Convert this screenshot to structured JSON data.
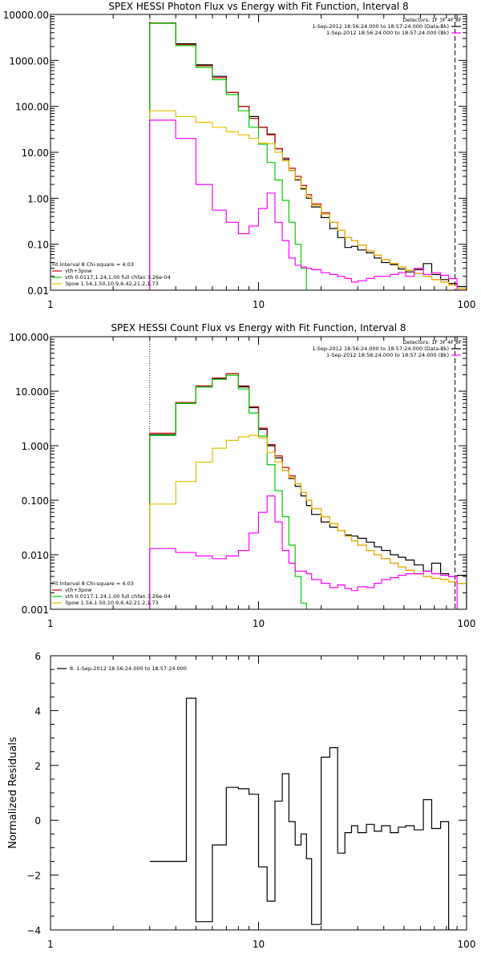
{
  "chart_data": [
    {
      "type": "line",
      "title": "SPEX HESSI Photon Flux vs Energy with Fit Function, Interval 8",
      "x_scale": "log",
      "y_scale": "log",
      "xlim": [
        1,
        100
      ],
      "ylim": [
        0.01,
        10000
      ],
      "x_ticks": [
        "1",
        "10",
        "100"
      ],
      "y_ticks": [
        "0.01",
        "0.10",
        "1.00",
        "10.00",
        "100.00",
        "1000.00",
        "10000.00"
      ],
      "legend_top": {
        "detectors": "Detectors: 1F 3F 4F 8F",
        "entries": [
          {
            "text": "1-Sep-2012 18:56:24.000 to 18:57:24.000 (Data-Bk)",
            "color": "#000000"
          },
          {
            "text": "1-Sep-2012 18:56:24.000 to 18:57:24.000 (Bk)",
            "color": "#ff00ff"
          }
        ]
      },
      "legend_bottom": {
        "fit_label": "Fit Interval 8   Chi-square = 4.03",
        "entries": [
          {
            "text": "vth+3pow",
            "color": "#cc0000"
          },
          {
            "text": "vth 0.0117,1.24,1.00  full chfan 3.26e-04",
            "color": "#00cc00"
          },
          {
            "text": "3pow 1.54,1.50,10.9,6.42,21.2,1.73",
            "color": "#e6c000"
          }
        ]
      },
      "fit_range": [
        3.0,
        88.0
      ],
      "bin_edges": [
        3.0,
        4.0,
        5.0,
        6.0,
        7.0,
        8.0,
        9.0,
        10.0,
        11.0,
        12.0,
        13.0,
        14.0,
        15.0,
        16.0,
        17.0,
        18.0,
        20.0,
        22.0,
        24.0,
        26.0,
        28.0,
        30.0,
        33.0,
        36.0,
        39.0,
        43.0,
        47.0,
        51.0,
        56.0,
        62.0,
        68.0,
        75.0,
        82.0,
        90.0,
        100.0
      ],
      "series": [
        {
          "name": "Data-Bk",
          "color": "#000000",
          "values": [
            6500,
            2300,
            800,
            450,
            200,
            100,
            60,
            35,
            25,
            12,
            7.0,
            4.0,
            2.5,
            1.6,
            1.0,
            0.65,
            0.38,
            0.22,
            0.14,
            0.085,
            0.09,
            0.075,
            0.065,
            0.05,
            0.04,
            0.036,
            0.029,
            0.025,
            0.028,
            0.038,
            0.022,
            0.017,
            0.014,
            0.012
          ]
        },
        {
          "name": "vth+3pow",
          "color": "#cc0000",
          "values": [
            6500,
            2200,
            760,
            420,
            200,
            100,
            55,
            35,
            24,
            12,
            7.5,
            4.5,
            3.0,
            1.9,
            1.2,
            0.75,
            0.48,
            0.3,
            0.2,
            0.14,
            0.12,
            0.095,
            0.072,
            0.058,
            0.046,
            0.038,
            0.032,
            0.027,
            0.023,
            0.02,
            0.017,
            0.015,
            0.013,
            0.011
          ]
        },
        {
          "name": "vth",
          "color": "#00cc00",
          "values": [
            6400,
            2100,
            700,
            380,
            180,
            80,
            35,
            15,
            6.0,
            2.5,
            0.9,
            0.3,
            0.1,
            0.03,
            0.009
          ]
        },
        {
          "name": "3pow",
          "color": "#e6c000",
          "values": [
            80,
            60,
            45,
            35,
            28,
            24,
            20,
            16,
            15.5,
            10,
            6.5,
            4.0,
            2.6,
            1.7,
            1.1,
            0.7,
            0.45,
            0.3,
            0.2,
            0.14,
            0.12,
            0.095,
            0.072,
            0.058,
            0.046,
            0.038,
            0.032,
            0.027,
            0.023,
            0.02,
            0.017,
            0.015,
            0.013,
            0.011
          ]
        },
        {
          "name": "Bk",
          "color": "#ff00ff",
          "values": [
            50,
            20,
            2.0,
            0.55,
            0.3,
            0.17,
            0.25,
            0.6,
            1.3,
            0.3,
            0.12,
            0.05,
            0.035,
            0.032,
            0.03,
            0.028,
            0.024,
            0.022,
            0.02,
            0.018,
            0.015,
            0.016,
            0.018,
            0.02,
            0.02,
            0.022,
            0.024,
            0.02,
            0.03,
            0.022,
            0.024,
            0.021,
            0.018,
            0.01
          ]
        }
      ]
    },
    {
      "type": "line",
      "title": "SPEX HESSI Count Flux vs Energy with Fit Function, Interval 8",
      "x_scale": "log",
      "y_scale": "log",
      "xlim": [
        1,
        100
      ],
      "ylim": [
        0.001,
        100
      ],
      "x_ticks": [
        "1",
        "10",
        "100"
      ],
      "y_ticks": [
        "0.001",
        "0.010",
        "0.100",
        "1.000",
        "10.000",
        "100.000"
      ],
      "legend_top": {
        "detectors": "Detectors: 1F 3F 4F 8F",
        "entries": [
          {
            "text": "1-Sep-2012 18:56:24.000 to 18:57:24.000 (Data-Bk)",
            "color": "#000000"
          },
          {
            "text": "1-Sep-2012 18:56:24.000 to 18:57:24.000 (Bk)",
            "color": "#ff00ff"
          }
        ]
      },
      "legend_bottom": {
        "fit_label": "Fit Interval 8   Chi-square = 4.03",
        "entries": [
          {
            "text": "vth+3pow",
            "color": "#cc0000"
          },
          {
            "text": "vth 0.0117,1.24,1.00  full chfan 3.26e-04",
            "color": "#00cc00"
          },
          {
            "text": "3pow 1.54,1.50,10.9,6.42,21.2,1.73",
            "color": "#e6c000"
          }
        ]
      },
      "fit_range": [
        3.0,
        88.0
      ],
      "bin_edges": [
        3.0,
        4.0,
        5.0,
        6.0,
        7.0,
        8.0,
        9.0,
        10.0,
        11.0,
        12.0,
        13.0,
        14.0,
        15.0,
        16.0,
        17.0,
        18.0,
        20.0,
        22.0,
        24.0,
        26.0,
        28.0,
        30.0,
        33.0,
        36.0,
        39.0,
        43.0,
        47.0,
        51.0,
        56.0,
        62.0,
        68.0,
        75.0,
        82.0,
        90.0,
        100.0
      ],
      "series": [
        {
          "name": "Data-Bk",
          "color": "#000000",
          "values": [
            1.6,
            6.0,
            12.0,
            17.0,
            21.0,
            12.0,
            5.0,
            2.0,
            1.0,
            0.6,
            0.35,
            0.25,
            0.18,
            0.12,
            0.08,
            0.055,
            0.04,
            0.032,
            0.028,
            0.023,
            0.022,
            0.02,
            0.017,
            0.014,
            0.012,
            0.01,
            0.009,
            0.008,
            0.0065,
            0.005,
            0.007,
            0.0045,
            0.004,
            0.0042
          ]
        },
        {
          "name": "vth+3pow",
          "color": "#cc0000",
          "values": [
            1.7,
            6.2,
            12.5,
            17.5,
            21.0,
            12.5,
            5.2,
            2.1,
            1.05,
            0.65,
            0.4,
            0.28,
            0.2,
            0.14,
            0.1,
            0.07,
            0.05,
            0.037,
            0.028,
            0.022,
            0.018,
            0.015,
            0.012,
            0.01,
            0.0085,
            0.007,
            0.006,
            0.0052,
            0.0045,
            0.004,
            0.0037,
            0.0035,
            0.0032,
            0.003
          ]
        },
        {
          "name": "vth",
          "color": "#00cc00",
          "values": [
            1.55,
            6.0,
            12.0,
            16.5,
            19.5,
            11.0,
            4.0,
            1.5,
            0.45,
            0.15,
            0.05,
            0.015,
            0.004,
            0.0013
          ]
        },
        {
          "name": "3pow",
          "color": "#e6c000",
          "values": [
            0.085,
            0.22,
            0.5,
            0.9,
            1.25,
            1.45,
            1.55,
            1.4,
            0.75,
            0.5,
            0.35,
            0.26,
            0.2,
            0.14,
            0.1,
            0.07,
            0.05,
            0.037,
            0.028,
            0.022,
            0.018,
            0.015,
            0.012,
            0.01,
            0.0085,
            0.007,
            0.006,
            0.0052,
            0.0045,
            0.004,
            0.0037,
            0.0035,
            0.0032,
            0.003
          ]
        },
        {
          "name": "Bk",
          "color": "#ff00ff",
          "values": [
            0.013,
            0.011,
            0.0095,
            0.0085,
            0.0095,
            0.012,
            0.025,
            0.06,
            0.12,
            0.04,
            0.012,
            0.007,
            0.005,
            0.005,
            0.0045,
            0.0035,
            0.003,
            0.0025,
            0.0028,
            0.0024,
            0.0022,
            0.0026,
            0.0025,
            0.003,
            0.0035,
            0.0038,
            0.0042,
            0.0045,
            0.0045,
            0.005,
            0.0045,
            0.0042,
            0.004,
            0.0008
          ]
        }
      ]
    },
    {
      "type": "line",
      "title": "",
      "ylabel": "Normalized Residuals",
      "x_scale": "log",
      "xlim": [
        1,
        100
      ],
      "ylim": [
        -4,
        6
      ],
      "x_ticks": [
        "1",
        "10",
        "100"
      ],
      "y_ticks": [
        "−4",
        "−2",
        "0",
        "2",
        "4",
        "6"
      ],
      "legend": {
        "entries": [
          {
            "text": "8. 1-Sep-2012 18:56:24.000 to 18:57:24.000",
            "color": "#000000"
          }
        ]
      },
      "bin_edges": [
        3.0,
        4.0,
        4.5,
        5.0,
        6.0,
        7.0,
        8.0,
        9.0,
        10.0,
        11.0,
        12.0,
        13.0,
        14.0,
        15.0,
        16.0,
        17.0,
        18.0,
        20.0,
        22.0,
        24.0,
        26.0,
        28.0,
        30.0,
        33.0,
        36.0,
        39.0,
        43.0,
        47.0,
        51.0,
        56.0,
        62.0,
        68.0,
        75.0,
        82.0,
        90.0
      ],
      "series": [
        {
          "name": "8",
          "color": "#000000",
          "values": [
            -1.5,
            -1.5,
            4.45,
            -3.7,
            -0.9,
            1.2,
            1.15,
            0.95,
            -1.7,
            -2.95,
            0.7,
            1.7,
            -0.05,
            -0.9,
            -0.5,
            -1.4,
            -3.8,
            2.3,
            2.65,
            -1.2,
            -0.45,
            -0.2,
            -0.45,
            -0.15,
            -0.4,
            -0.2,
            -0.45,
            -0.25,
            -0.2,
            -0.35,
            0.75,
            -0.3,
            -0.05,
            -4.0
          ]
        }
      ]
    }
  ]
}
